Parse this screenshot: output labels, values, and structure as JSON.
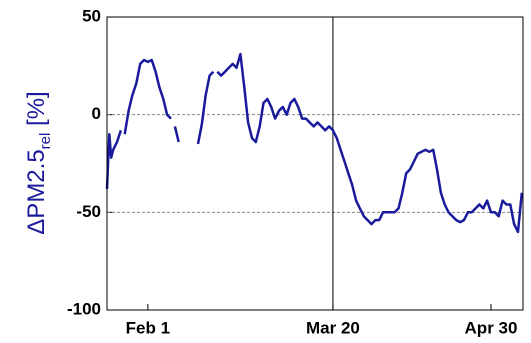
{
  "chart_data": {
    "type": "line",
    "ylabel": "ΔPM2.5",
    "ylabel_subscript": "rel",
    "ylabel_unit": "[%]",
    "x": [
      -10.6,
      -10,
      -9.5,
      -9,
      -8,
      -7,
      -6.5,
      -6,
      -5,
      -4,
      -3,
      -2,
      -1,
      0,
      1,
      2,
      3,
      4,
      5,
      6,
      6.5,
      7,
      8,
      8.5,
      13,
      14,
      15,
      16,
      17,
      17.5,
      18,
      19,
      20,
      21,
      22,
      23,
      24,
      25,
      26,
      27,
      28,
      29,
      30,
      31,
      32,
      33,
      34,
      35,
      36,
      37,
      38,
      39,
      40,
      41,
      42,
      43,
      44,
      45,
      46,
      47,
      48,
      49,
      50,
      51,
      52,
      53,
      54,
      55,
      56,
      57,
      58,
      59,
      60,
      61,
      62,
      63,
      64,
      65,
      66,
      67,
      68,
      69,
      70,
      71,
      72,
      73,
      74,
      75,
      76,
      77,
      78,
      79,
      80,
      81,
      82,
      83,
      84,
      85,
      86,
      87,
      88,
      89,
      90,
      91,
      92,
      93,
      94,
      95,
      96,
      97
    ],
    "series": [
      {
        "name": "ΔPM2.5",
        "color": "#1a1a9c",
        "values": [
          -38,
          -10,
          -22,
          -18,
          -14,
          -8,
          null,
          -10,
          2,
          10,
          16,
          26,
          28,
          27,
          28,
          22,
          14,
          8,
          0,
          -2,
          null,
          -6,
          -14,
          null,
          -15,
          -5,
          10,
          20,
          22,
          null,
          22,
          20,
          22,
          24,
          26,
          24,
          31,
          14,
          -4,
          -12,
          -14,
          -6,
          6,
          8,
          4,
          -2,
          2,
          4,
          0,
          6,
          8,
          4,
          -2,
          -2,
          -4,
          -6,
          -4,
          -6,
          -8,
          -6,
          -8,
          -12,
          -18,
          -24,
          -30,
          -36,
          -44,
          -48,
          -52,
          -54,
          -56,
          -54,
          -54,
          -50,
          -50,
          -50,
          -50,
          -48,
          -40,
          -30,
          -28,
          -24,
          -20,
          -19,
          -18,
          -19,
          -18,
          -28,
          -40,
          -46,
          -50,
          -52,
          -54,
          -55,
          -54,
          -50,
          -50,
          -48,
          -46,
          -48,
          -44,
          -50,
          -50,
          -52,
          -44,
          -46,
          -46,
          -56,
          -60,
          -40
        ]
      }
    ],
    "xlim": [
      -10.6,
      97.3
    ],
    "xticks": [
      {
        "value": 0,
        "label": "Feb 1"
      },
      {
        "value": 48,
        "label": "Mar 20"
      },
      {
        "value": 89,
        "label": "Apr 30"
      }
    ],
    "ylim": [
      -100,
      50
    ],
    "yticks": [
      -100,
      -50,
      0,
      50
    ],
    "vline": 48,
    "grid": true
  }
}
